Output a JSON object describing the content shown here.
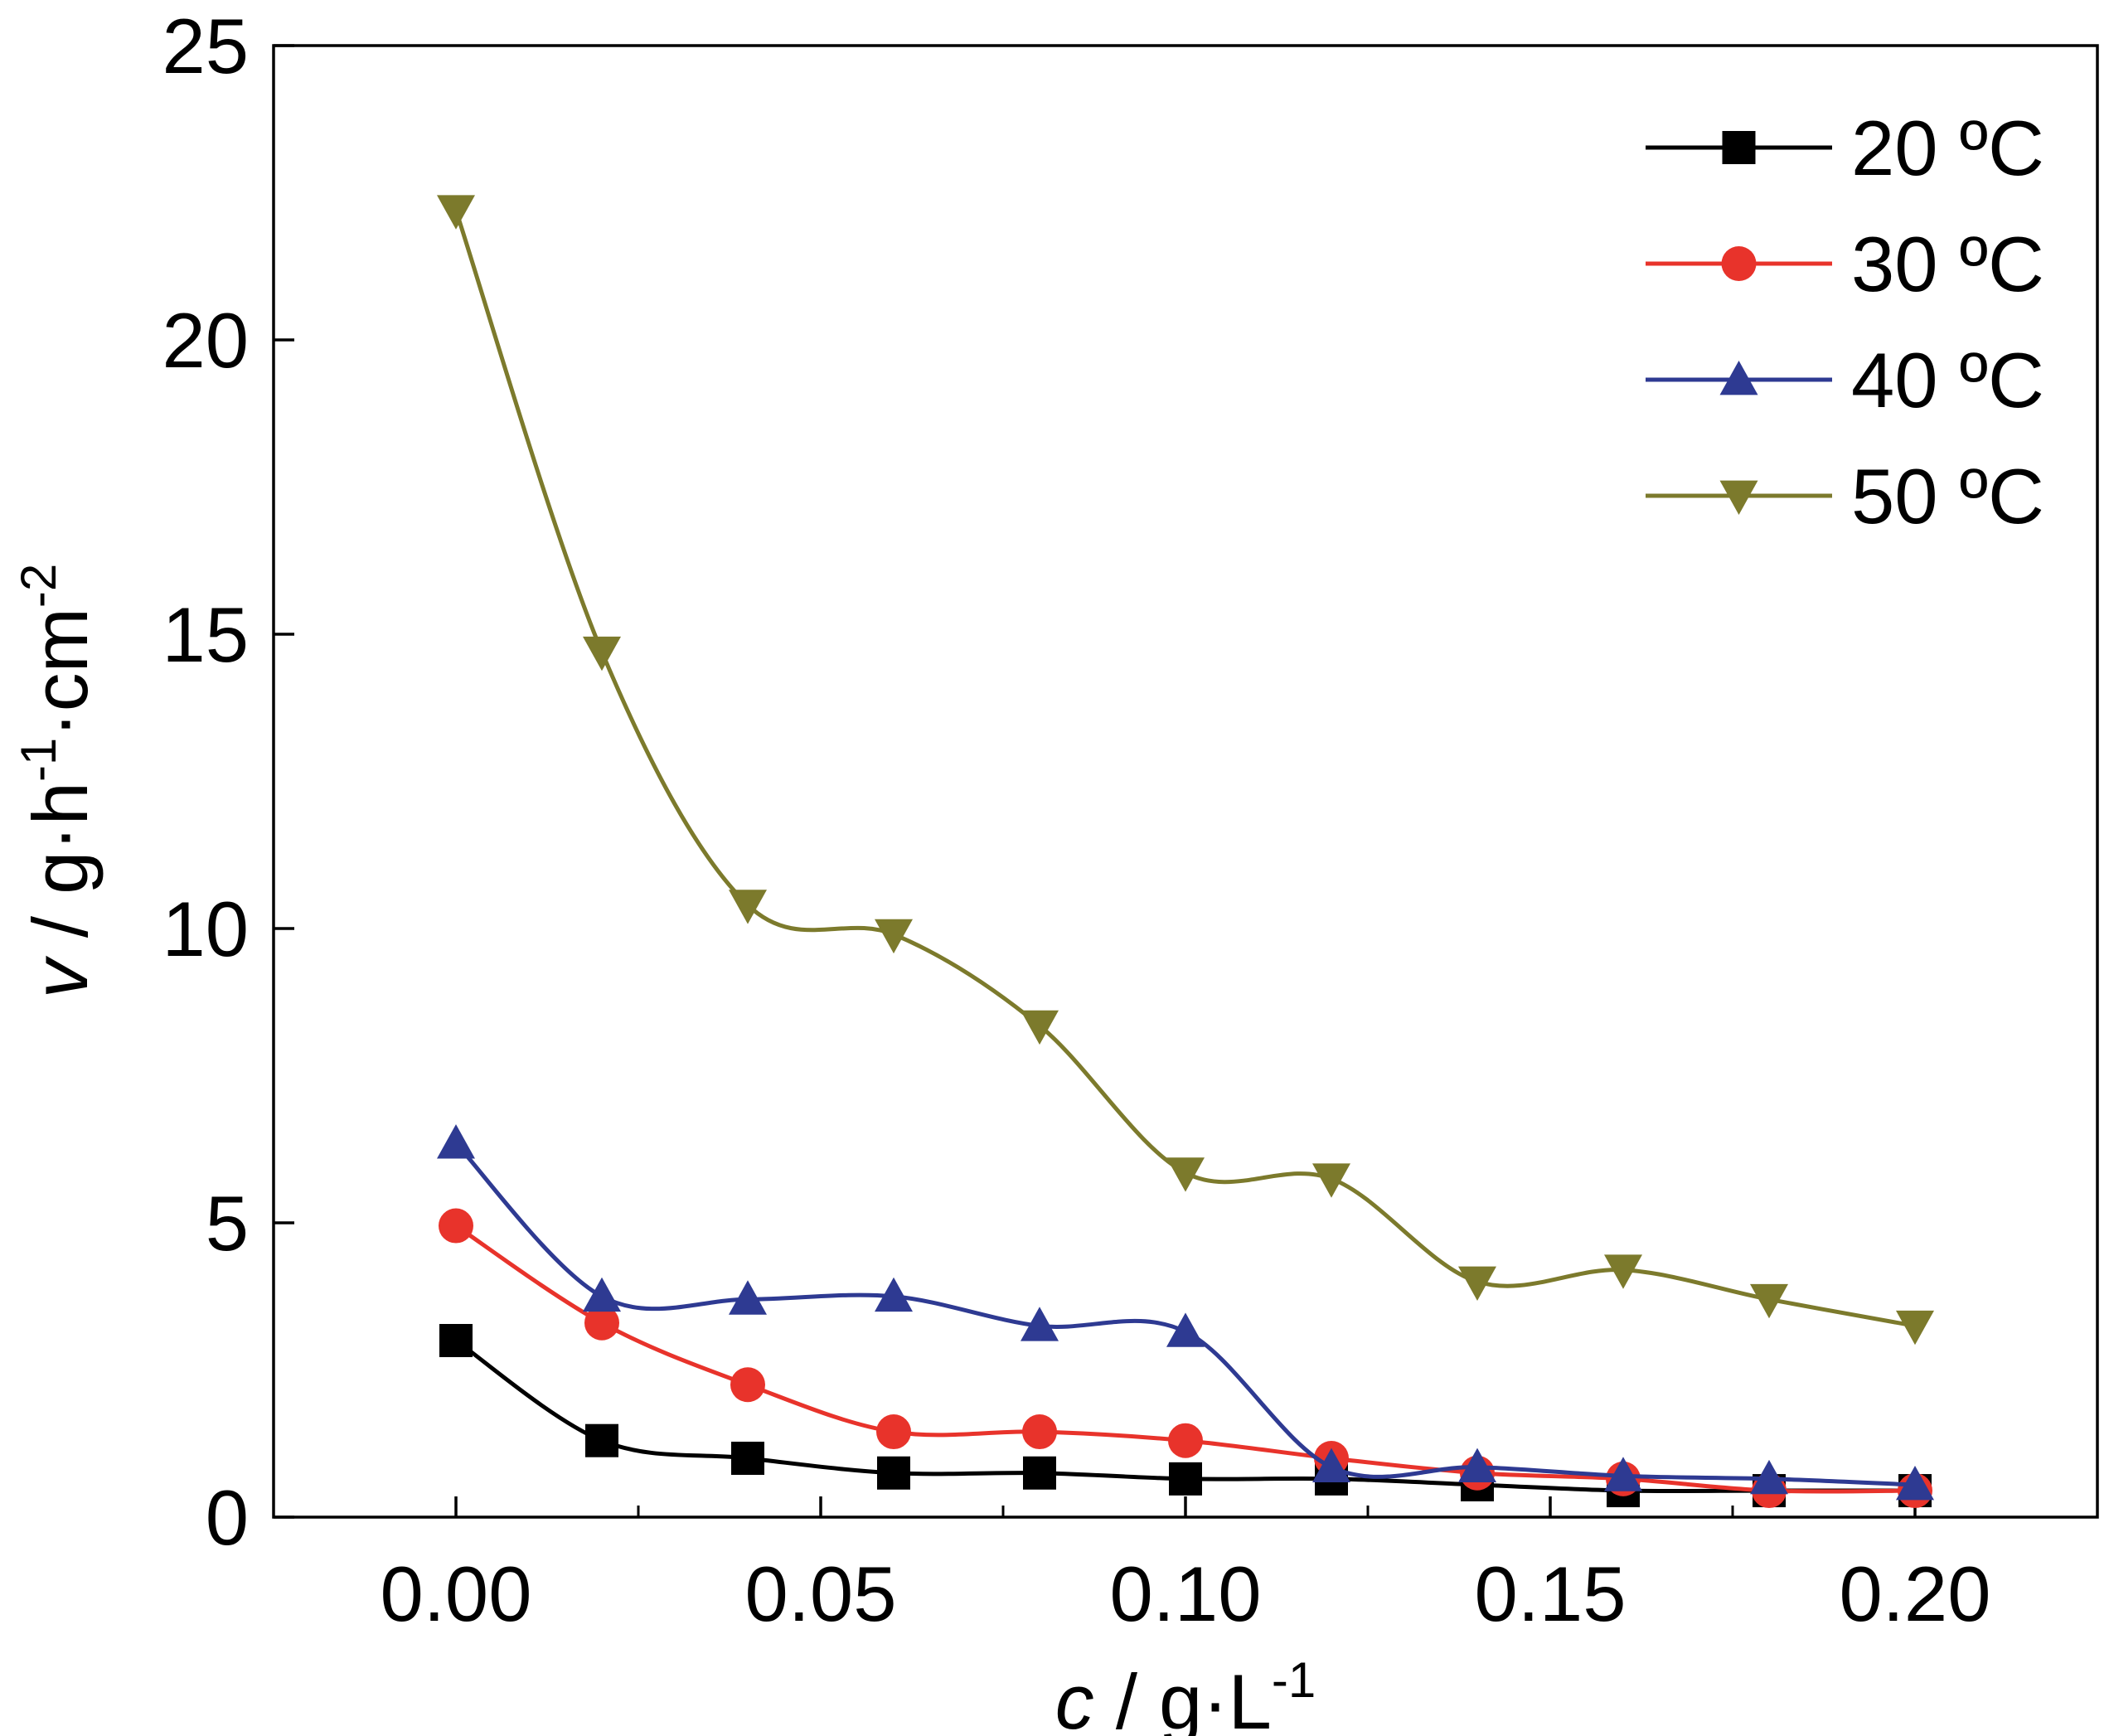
{
  "chart_data": {
    "type": "line",
    "xlim": [
      -0.025,
      0.225
    ],
    "ylim": [
      0,
      25
    ],
    "x_ticks": [
      0.0,
      0.05,
      0.1,
      0.15,
      0.2
    ],
    "x_tick_labels": [
      "0.00",
      "0.05",
      "0.10",
      "0.15",
      "0.20"
    ],
    "y_ticks": [
      0,
      5,
      10,
      15,
      20,
      25
    ],
    "y_tick_labels": [
      "0",
      "5",
      "10",
      "15",
      "20",
      "25"
    ],
    "x_minor_ticks": [
      0.025,
      0.075,
      0.125,
      0.175
    ],
    "xlabel": {
      "var": "c",
      "unit": " / g·L",
      "sup": "-1"
    },
    "ylabel": {
      "var": "v",
      "unit1": " / g·h",
      "sup1": "-1",
      "unit2": "·cm",
      "sup2": "-2"
    },
    "legend_position": "top-right",
    "grid": false,
    "x": [
      0.0,
      0.02,
      0.04,
      0.06,
      0.08,
      0.1,
      0.12,
      0.14,
      0.16,
      0.18,
      0.2
    ],
    "series": [
      {
        "name": "20 ºC",
        "color": "#000000",
        "marker": "square",
        "values": [
          3.0,
          1.3,
          1.0,
          0.75,
          0.75,
          0.65,
          0.65,
          0.55,
          0.45,
          0.45,
          0.45
        ]
      },
      {
        "name": "30 ºC",
        "color": "#e8332b",
        "marker": "circle",
        "values": [
          4.95,
          3.3,
          2.25,
          1.45,
          1.45,
          1.3,
          1.0,
          0.75,
          0.65,
          0.45,
          0.45
        ]
      },
      {
        "name": "40 ºC",
        "color": "#2e3a92",
        "marker": "triangle-up",
        "values": [
          6.35,
          3.75,
          3.7,
          3.75,
          3.25,
          3.15,
          0.85,
          0.85,
          0.7,
          0.65,
          0.55
        ]
      },
      {
        "name": "50 ºC",
        "color": "#7c7a2c",
        "marker": "triangle-down",
        "values": [
          22.2,
          14.7,
          10.4,
          9.9,
          8.35,
          5.85,
          5.75,
          4.0,
          4.2,
          3.7,
          3.25
        ]
      }
    ]
  }
}
